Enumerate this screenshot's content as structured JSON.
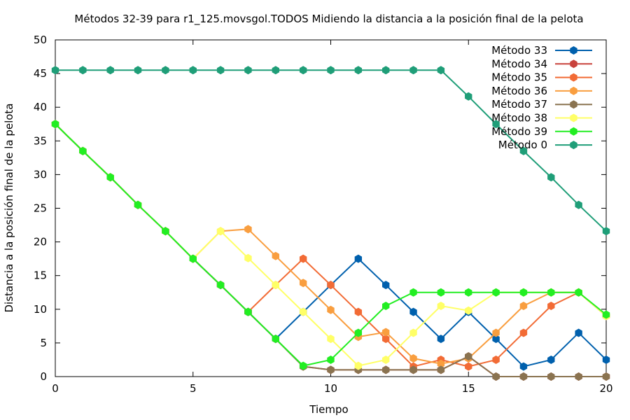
{
  "chart_data": {
    "type": "line",
    "title": "Métodos 32-39 para r1_125.movsgol.TODOS Midiendo la distancia a la posición final de la pelota",
    "xlabel": "Tiempo",
    "ylabel": "Distancia a la posición final de la pelota",
    "xlim": [
      0,
      20
    ],
    "ylim": [
      0,
      50
    ],
    "xticks": [
      0,
      5,
      10,
      15,
      20
    ],
    "yticks": [
      0,
      5,
      10,
      15,
      20,
      25,
      30,
      35,
      40,
      45,
      50
    ],
    "grid": false,
    "legend_position": "top-right",
    "x": [
      0,
      1,
      2,
      3,
      4,
      5,
      6,
      7,
      8,
      9,
      10,
      11,
      12,
      13,
      14,
      15,
      16,
      17,
      18,
      19,
      20
    ],
    "series": [
      {
        "name": "Método 33",
        "color": "#0060ad",
        "values": [
          37.5,
          33.5,
          29.6,
          25.5,
          21.6,
          17.5,
          13.6,
          9.6,
          5.6,
          9.6,
          13.6,
          17.5,
          13.6,
          9.6,
          5.6,
          9.6,
          5.6,
          1.5,
          2.5,
          6.5,
          2.5
        ]
      },
      {
        "name": "Método 34",
        "color": "#c8423c",
        "values": [
          37.5,
          33.5,
          29.6,
          25.5,
          21.6,
          17.5,
          13.6,
          9.6,
          5.6,
          1.5,
          1.0,
          1.0,
          1.0,
          1.0,
          1.0,
          3.0,
          0,
          0,
          0,
          0,
          0
        ]
      },
      {
        "name": "Método 35",
        "color": "#f26b35",
        "values": [
          37.5,
          33.5,
          29.6,
          25.5,
          21.6,
          17.5,
          13.6,
          9.6,
          13.6,
          17.5,
          13.6,
          9.6,
          5.6,
          1.5,
          2.5,
          1.5,
          2.5,
          6.5,
          10.5,
          12.5,
          9.0
        ]
      },
      {
        "name": "Método 36",
        "color": "#f99e3f",
        "values": [
          37.5,
          33.5,
          29.6,
          25.5,
          21.6,
          17.5,
          21.6,
          21.9,
          17.9,
          13.9,
          9.9,
          5.9,
          6.6,
          2.7,
          1.9,
          2.7,
          6.5,
          10.5,
          12.5,
          12.5,
          9.0
        ]
      },
      {
        "name": "Método 37",
        "color": "#8a7350",
        "values": [
          37.5,
          33.5,
          29.6,
          25.5,
          21.6,
          17.5,
          13.6,
          9.6,
          5.6,
          1.5,
          1.0,
          1.0,
          1.0,
          1.0,
          1.0,
          3.0,
          0,
          0,
          0,
          0,
          0
        ]
      },
      {
        "name": "Método 38",
        "color": "#ffff66",
        "values": [
          37.5,
          33.5,
          29.6,
          25.5,
          21.6,
          17.5,
          21.6,
          17.6,
          13.6,
          9.6,
          5.6,
          1.6,
          2.5,
          6.5,
          10.5,
          9.8,
          12.5,
          12.5,
          12.5,
          12.5,
          9.0
        ]
      },
      {
        "name": "Método 39",
        "color": "#22ee22",
        "values": [
          37.5,
          33.5,
          29.6,
          25.5,
          21.6,
          17.5,
          13.6,
          9.6,
          5.6,
          1.6,
          2.5,
          6.5,
          10.5,
          12.5,
          12.5,
          12.5,
          12.5,
          12.5,
          12.5,
          12.5,
          9.2
        ]
      },
      {
        "name": "Método 0",
        "color": "#1f9e78",
        "values": [
          45.5,
          45.5,
          45.5,
          45.5,
          45.5,
          45.5,
          45.5,
          45.5,
          45.5,
          45.5,
          45.5,
          45.5,
          45.5,
          45.5,
          45.5,
          41.6,
          37.5,
          33.5,
          29.6,
          25.5,
          21.6
        ]
      }
    ]
  }
}
